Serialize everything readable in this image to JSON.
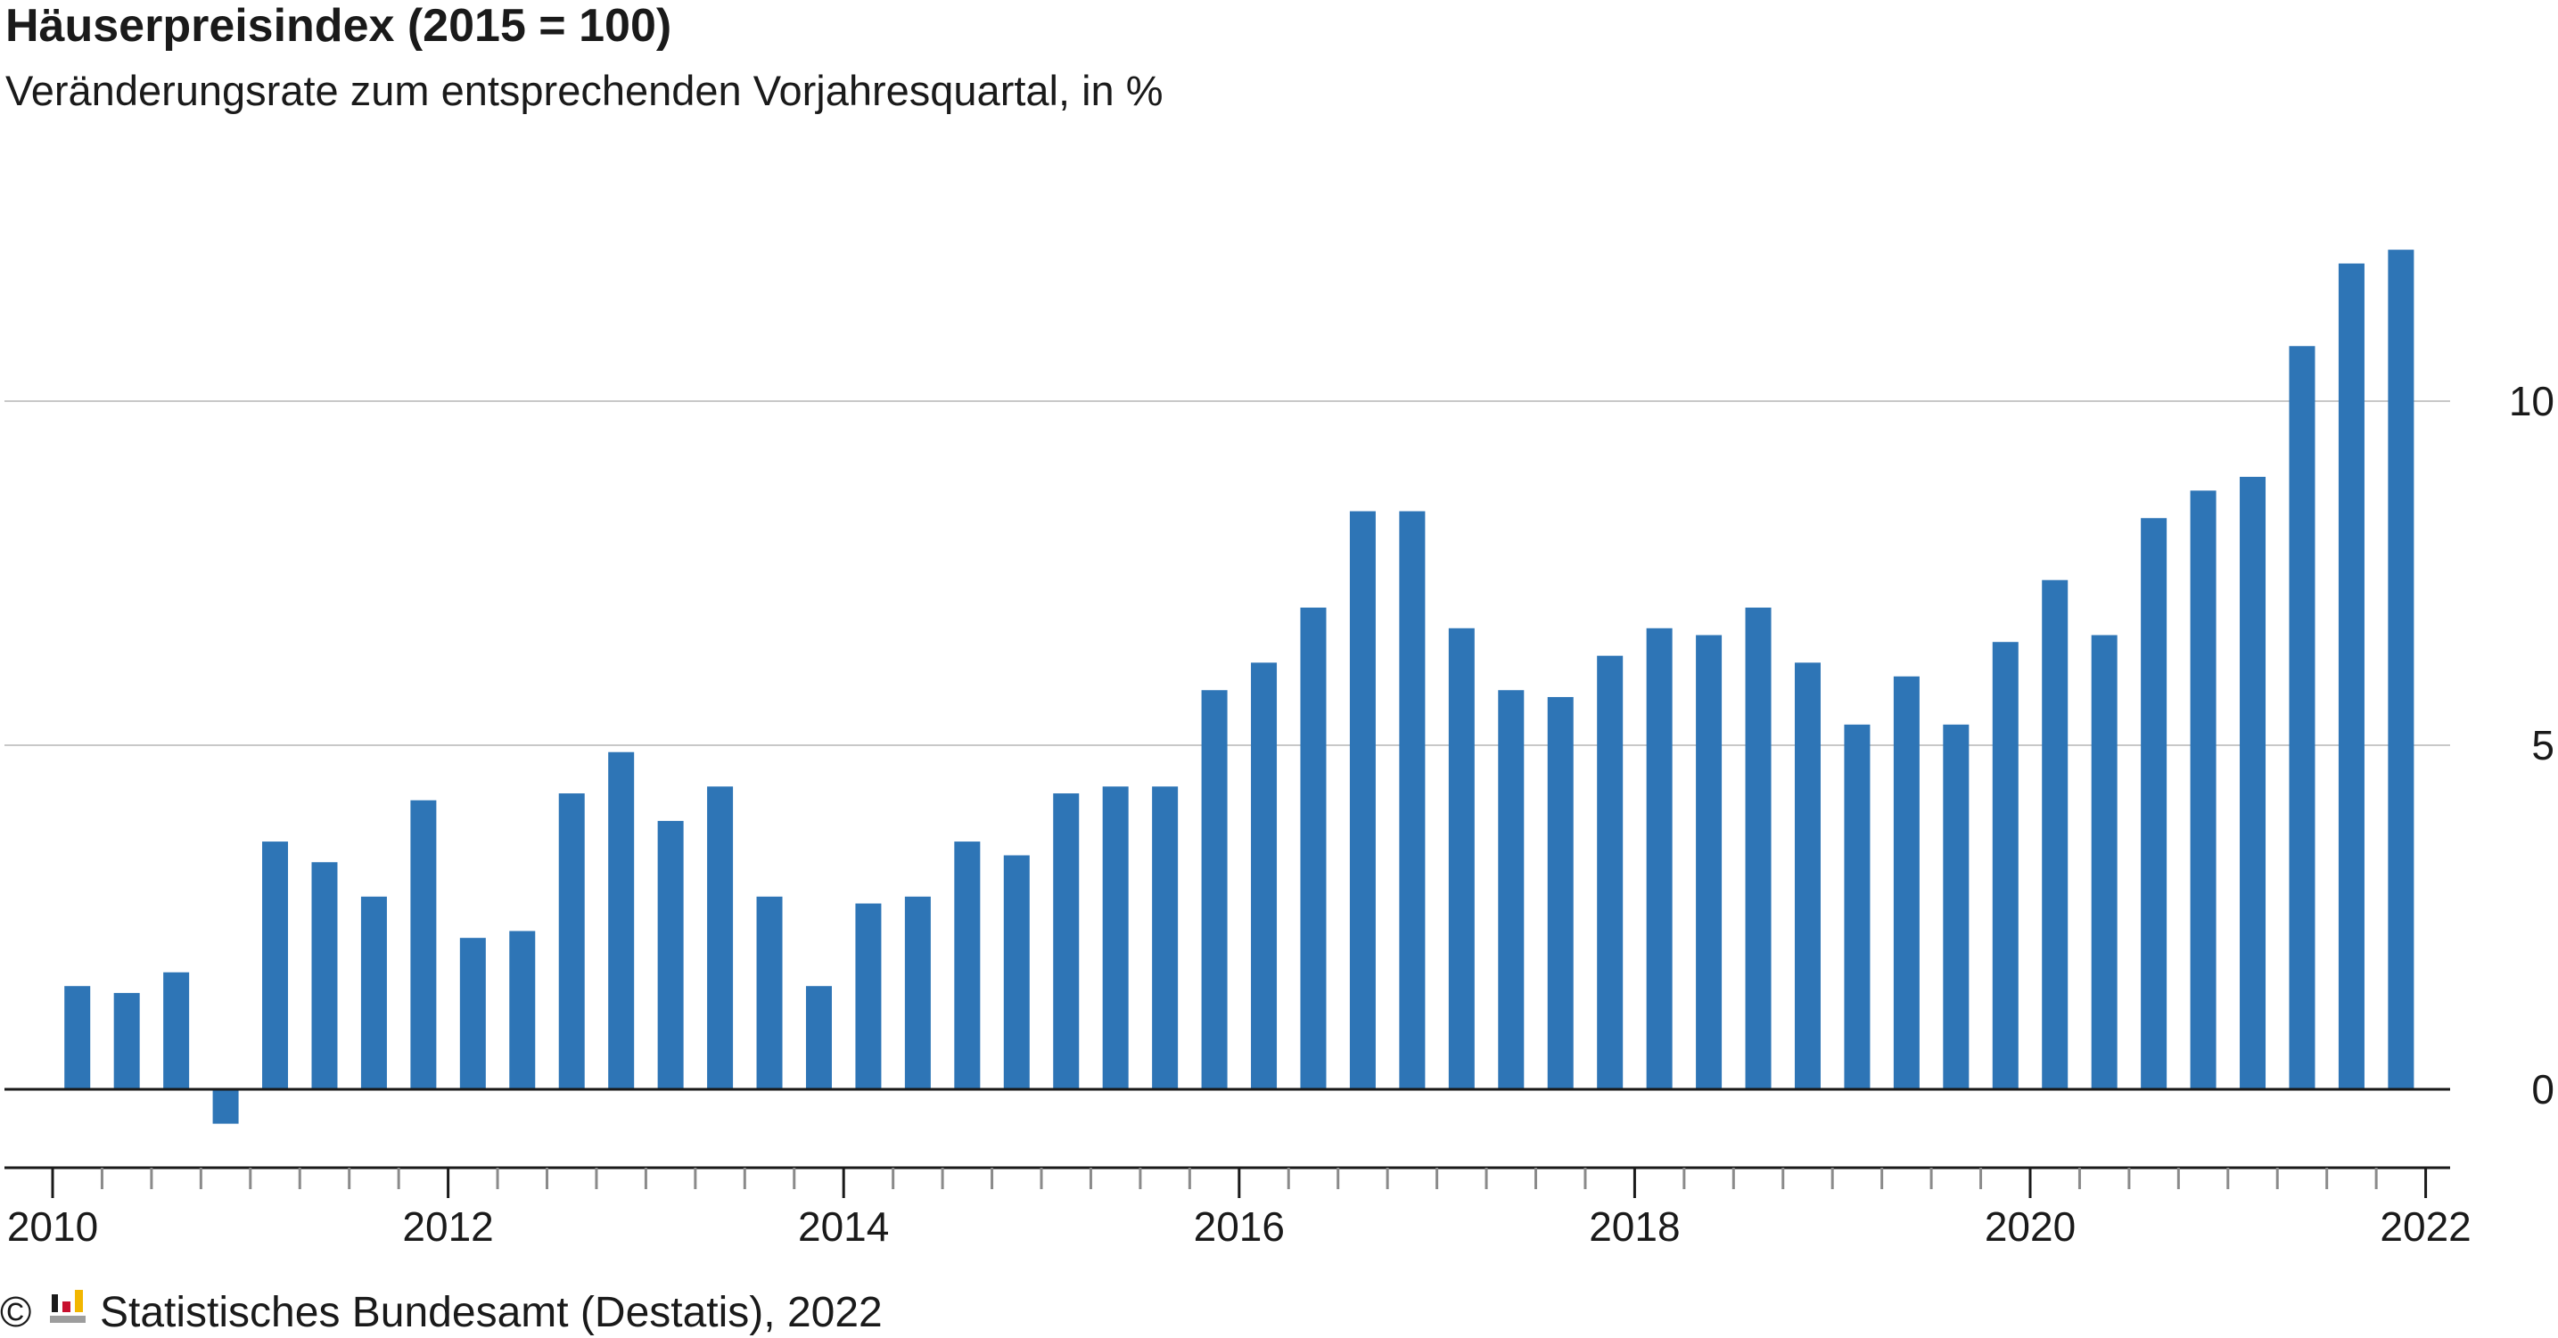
{
  "chart_data": {
    "type": "bar",
    "title": "Häuserpreisindex (2015 = 100)",
    "subtitle": "Veränderungsrate zum entsprechenden Vorjahresquartal, in %",
    "xlabel": "",
    "ylabel": "",
    "y_axis_side": "right",
    "ylim": [
      -1.1,
      12.8
    ],
    "y_ticks": [
      0,
      5,
      10
    ],
    "y_tick_labels": [
      "0",
      "5",
      "10"
    ],
    "grid": true,
    "legend": "none",
    "bar_color": "#2e75b6",
    "x_year_labels": [
      "2010",
      "2012",
      "2014",
      "2016",
      "2018",
      "2020",
      "2022"
    ],
    "categories": [
      "2010 Q1",
      "2010 Q2",
      "2010 Q3",
      "2010 Q4",
      "2011 Q1",
      "2011 Q2",
      "2011 Q3",
      "2011 Q4",
      "2012 Q1",
      "2012 Q2",
      "2012 Q3",
      "2012 Q4",
      "2013 Q1",
      "2013 Q2",
      "2013 Q3",
      "2013 Q4",
      "2014 Q1",
      "2014 Q2",
      "2014 Q3",
      "2014 Q4",
      "2015 Q1",
      "2015 Q2",
      "2015 Q3",
      "2015 Q4",
      "2016 Q1",
      "2016 Q2",
      "2016 Q3",
      "2016 Q4",
      "2017 Q1",
      "2017 Q2",
      "2017 Q3",
      "2017 Q4",
      "2018 Q1",
      "2018 Q2",
      "2018 Q3",
      "2018 Q4",
      "2019 Q1",
      "2019 Q2",
      "2019 Q3",
      "2019 Q4",
      "2020 Q1",
      "2020 Q2",
      "2020 Q3",
      "2020 Q4",
      "2021 Q1",
      "2021 Q2",
      "2021 Q3",
      "2021 Q4"
    ],
    "values": [
      1.5,
      1.4,
      1.7,
      -0.5,
      3.6,
      3.3,
      2.8,
      4.2,
      2.2,
      2.3,
      4.3,
      4.9,
      3.9,
      4.4,
      2.8,
      1.5,
      2.7,
      2.8,
      3.6,
      3.4,
      4.3,
      4.4,
      4.4,
      5.8,
      6.2,
      7.0,
      8.4,
      8.4,
      6.7,
      5.8,
      5.7,
      6.3,
      6.7,
      6.6,
      7.0,
      6.2,
      5.3,
      6.0,
      5.3,
      6.5,
      7.4,
      6.6,
      8.3,
      8.7,
      8.9,
      10.8,
      12.0,
      12.2
    ]
  },
  "footer": {
    "copyright_symbol": "©",
    "source_text": "Statistisches Bundesamt (Destatis), 2022"
  }
}
